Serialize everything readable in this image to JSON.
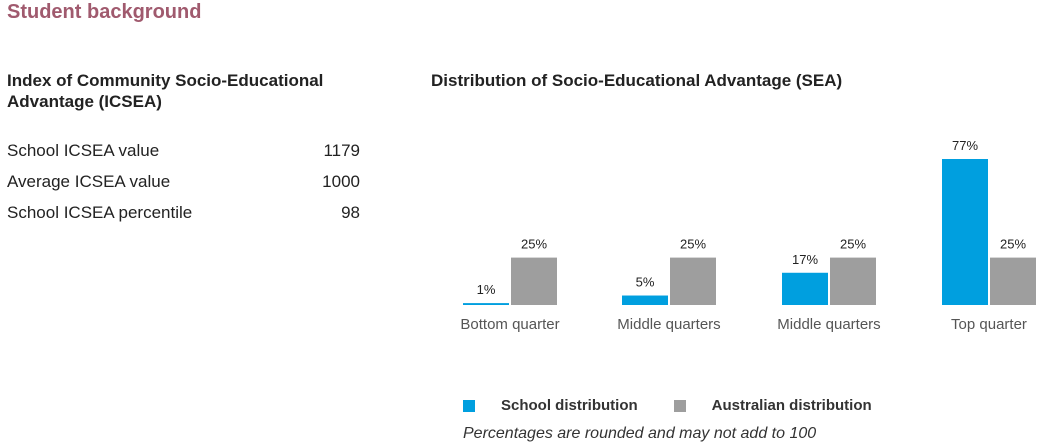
{
  "section_title": "Student background",
  "icsea": {
    "heading": "Index of Community Socio-Educational Advantage (ICSEA)",
    "rows": [
      {
        "label": "School ICSEA value",
        "value": "1179"
      },
      {
        "label": "Average ICSEA value",
        "value": "1000"
      },
      {
        "label": "School ICSEA percentile",
        "value": "98"
      }
    ]
  },
  "colors": {
    "school": "#009fdf",
    "australian": "#9e9e9e"
  },
  "chart_data": {
    "type": "bar",
    "title": "Distribution of Socio-Educational Advantage (SEA)",
    "categories": [
      "Bottom quarter",
      "Middle quarters",
      "Middle quarters",
      "Top quarter"
    ],
    "series": [
      {
        "name": "School distribution",
        "values": [
          1,
          5,
          17,
          77
        ],
        "labels": [
          "1%",
          "5%",
          "17%",
          "77%"
        ]
      },
      {
        "name": "Australian distribution",
        "values": [
          25,
          25,
          25,
          25
        ],
        "labels": [
          "25%",
          "25%",
          "25%",
          "25%"
        ]
      }
    ],
    "ylim": [
      0,
      77
    ],
    "grid": false,
    "legend": "bottom",
    "footnote": "Percentages are rounded and may not add to 100"
  }
}
